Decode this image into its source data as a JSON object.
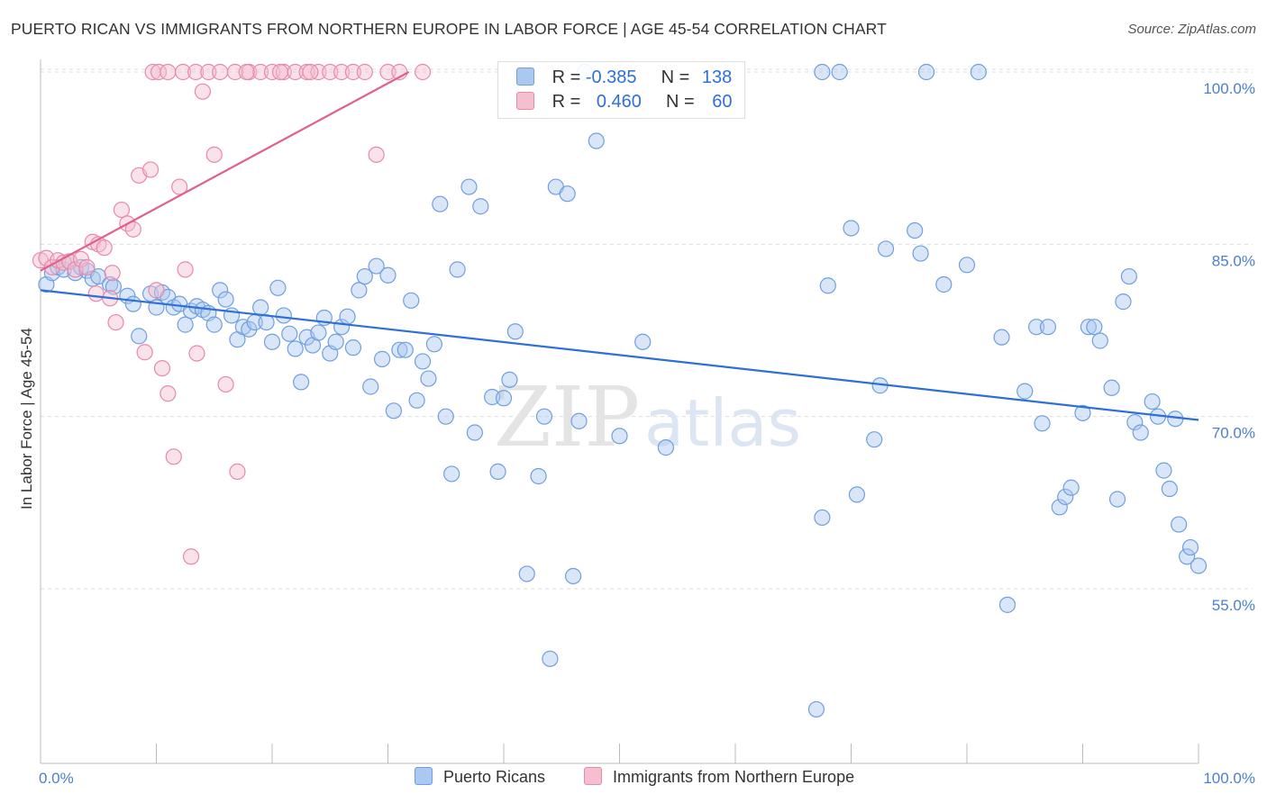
{
  "header": {
    "title": "PUERTO RICAN VS IMMIGRANTS FROM NORTHERN EUROPE IN LABOR FORCE | AGE 45-54 CORRELATION CHART",
    "source": "Source: ZipAtlas.com"
  },
  "watermark": {
    "zip": "ZIP",
    "atlas": "atlas"
  },
  "legend": {
    "rows": [
      {
        "r_label": "R =",
        "r_value": "-0.385",
        "n_label": "N =",
        "n_value": "138",
        "color": "#7aaae8"
      },
      {
        "r_label": "R =",
        "r_value": "0.460",
        "n_label": "N =",
        "n_value": "60",
        "color": "#f0a0b8"
      }
    ],
    "bottom": [
      {
        "label": "Puerto Ricans",
        "color": "#7aaae8"
      },
      {
        "label": "Immigrants from Northern Europe",
        "color": "#f0a0b8"
      }
    ]
  },
  "colors": {
    "blue_fill": "#aac8f0",
    "blue_stroke": "#6f9fe0",
    "blue_line": "#2e6fd8",
    "pink_fill": "#f5bfd0",
    "pink_stroke": "#e889a8",
    "pink_line": "#e0608a",
    "grid": "#dddddd",
    "tick_label": "#4a7fd1"
  },
  "chart_data": {
    "type": "scatter",
    "title": "PUERTO RICAN VS IMMIGRANTS FROM NORTHERN EUROPE IN LABOR FORCE | AGE 45-54 CORRELATION CHART",
    "xlabel": "",
    "ylabel": "In Labor Force | Age 45-54",
    "xlim": [
      0,
      100
    ],
    "ylim": [
      40,
      102
    ],
    "x_tick_labels": [
      "0.0%",
      "100.0%"
    ],
    "y_ticks": [
      100,
      85,
      70,
      55
    ],
    "y_tick_labels": [
      "100.0%",
      "85.0%",
      "70.0%",
      "55.0%"
    ],
    "grid": "horizontal dashed",
    "series": [
      {
        "name": "Puerto Ricans",
        "r": -0.385,
        "n": 138,
        "trend": {
          "x": [
            0,
            100
          ],
          "y": [
            81.0,
            69.7
          ]
        },
        "points": [
          [
            0.5,
            81.5
          ],
          [
            1,
            82.5
          ],
          [
            1.5,
            83
          ],
          [
            2,
            82.8
          ],
          [
            2.5,
            83.5
          ],
          [
            3,
            82.5
          ],
          [
            3.5,
            83
          ],
          [
            4,
            82.7
          ],
          [
            4.5,
            82
          ],
          [
            5,
            82.2
          ],
          [
            6,
            81.5
          ],
          [
            6.3,
            81.3
          ],
          [
            7.5,
            80.5
          ],
          [
            8,
            79.8
          ],
          [
            8.5,
            77
          ],
          [
            9.5,
            80.7
          ],
          [
            10,
            79.5
          ],
          [
            10.5,
            80.8
          ],
          [
            11,
            80.4
          ],
          [
            11.5,
            79.5
          ],
          [
            12,
            79.8
          ],
          [
            12.5,
            78
          ],
          [
            13,
            79.2
          ],
          [
            13.5,
            79.6
          ],
          [
            14,
            79.3
          ],
          [
            14.5,
            79
          ],
          [
            15,
            78
          ],
          [
            15.5,
            81
          ],
          [
            16,
            80.2
          ],
          [
            16.5,
            78.8
          ],
          [
            17,
            76.7
          ],
          [
            17.5,
            77.8
          ],
          [
            18,
            77.6
          ],
          [
            18.5,
            78.2
          ],
          [
            19,
            79.5
          ],
          [
            19.5,
            78.2
          ],
          [
            20,
            76.5
          ],
          [
            20.5,
            81.2
          ],
          [
            21,
            78.8
          ],
          [
            21.5,
            77.2
          ],
          [
            22,
            75.9
          ],
          [
            22.5,
            73
          ],
          [
            23,
            76.9
          ],
          [
            23.5,
            76.2
          ],
          [
            24,
            77.3
          ],
          [
            24.5,
            78.6
          ],
          [
            25,
            75.5
          ],
          [
            25.5,
            76.5
          ],
          [
            26,
            77.8
          ],
          [
            26.5,
            78.7
          ],
          [
            27,
            76
          ],
          [
            27.5,
            81
          ],
          [
            28,
            82.2
          ],
          [
            28.5,
            72.6
          ],
          [
            29,
            83.1
          ],
          [
            29.5,
            75
          ],
          [
            30,
            82.3
          ],
          [
            30.5,
            70.5
          ],
          [
            31,
            75.8
          ],
          [
            31.5,
            75.8
          ],
          [
            32,
            80.1
          ],
          [
            32.5,
            71.4
          ],
          [
            33,
            74.8
          ],
          [
            33.5,
            73.3
          ],
          [
            34,
            76.3
          ],
          [
            34.5,
            88.5
          ],
          [
            35,
            70
          ],
          [
            35.5,
            65
          ],
          [
            36,
            82.8
          ],
          [
            37,
            90
          ],
          [
            37.5,
            68.6
          ],
          [
            38,
            88.3
          ],
          [
            39,
            71.7
          ],
          [
            39.5,
            65.2
          ],
          [
            40,
            71.6
          ],
          [
            40.5,
            73.2
          ],
          [
            41,
            77.4
          ],
          [
            42,
            56.3
          ],
          [
            43,
            64.8
          ],
          [
            43.5,
            70
          ],
          [
            44,
            48.9
          ],
          [
            44.5,
            90
          ],
          [
            45.5,
            89.4
          ],
          [
            46,
            56.1
          ],
          [
            46.5,
            69.6
          ],
          [
            47,
            100
          ],
          [
            48,
            94
          ],
          [
            50,
            68.3
          ],
          [
            52,
            76.5
          ],
          [
            54,
            67.3
          ],
          [
            67,
            44.5
          ],
          [
            67.5,
            100
          ],
          [
            67.5,
            61.2
          ],
          [
            68,
            81.4
          ],
          [
            69,
            100
          ],
          [
            70,
            86.4
          ],
          [
            70.5,
            63.2
          ],
          [
            72,
            68
          ],
          [
            72.5,
            72.7
          ],
          [
            73,
            84.6
          ],
          [
            75.5,
            86.2
          ],
          [
            76,
            84.2
          ],
          [
            76.5,
            100
          ],
          [
            78,
            81.5
          ],
          [
            80,
            83.2
          ],
          [
            81,
            100
          ],
          [
            83,
            76.9
          ],
          [
            83.5,
            53.6
          ],
          [
            85,
            72.2
          ],
          [
            86,
            77.8
          ],
          [
            86.5,
            69.4
          ],
          [
            87,
            77.8
          ],
          [
            88,
            62.1
          ],
          [
            88.5,
            63
          ],
          [
            89,
            63.8
          ],
          [
            90,
            70.3
          ],
          [
            90.5,
            77.8
          ],
          [
            91,
            77.8
          ],
          [
            91.5,
            76.6
          ],
          [
            92.5,
            72.5
          ],
          [
            93,
            62.8
          ],
          [
            93.5,
            80
          ],
          [
            94,
            82.2
          ],
          [
            94.5,
            69.5
          ],
          [
            95,
            68.6
          ],
          [
            96,
            71.3
          ],
          [
            96.5,
            70
          ],
          [
            97,
            65.3
          ],
          [
            97.5,
            63.7
          ],
          [
            98,
            69.8
          ],
          [
            98.3,
            60.6
          ],
          [
            99,
            57.8
          ],
          [
            99.3,
            58.6
          ],
          [
            100,
            57
          ]
        ]
      },
      {
        "name": "Immigrants from Northern Europe",
        "r": 0.46,
        "n": 60,
        "trend": {
          "x": [
            0,
            31.8
          ],
          "y": [
            82.7,
            100
          ]
        },
        "points": [
          [
            0,
            83.6
          ],
          [
            0.5,
            83.8
          ],
          [
            1,
            83
          ],
          [
            1.5,
            83.6
          ],
          [
            2,
            83.4
          ],
          [
            2.5,
            83.5
          ],
          [
            3,
            82.8
          ],
          [
            3.5,
            83.7
          ],
          [
            4,
            83
          ],
          [
            4.5,
            85.2
          ],
          [
            5,
            85
          ],
          [
            5.5,
            84.7
          ],
          [
            6,
            80.3
          ],
          [
            6.5,
            78.2
          ],
          [
            7,
            88
          ],
          [
            7.5,
            86.8
          ],
          [
            8,
            86.3
          ],
          [
            8.5,
            91
          ],
          [
            9,
            75.6
          ],
          [
            9.5,
            91.5
          ],
          [
            10,
            81
          ],
          [
            10.5,
            74.2
          ],
          [
            11,
            72
          ],
          [
            11.5,
            66.5
          ],
          [
            12,
            90
          ],
          [
            12.5,
            82.8
          ],
          [
            13,
            57.8
          ],
          [
            13.5,
            75.5
          ],
          [
            14,
            98.3
          ],
          [
            15,
            92.8
          ],
          [
            16,
            72.8
          ],
          [
            17,
            65.2
          ],
          [
            18,
            100
          ],
          [
            19,
            100
          ],
          [
            20,
            100
          ],
          [
            21,
            100
          ],
          [
            22,
            100
          ],
          [
            23,
            100
          ],
          [
            24,
            100
          ],
          [
            25,
            100
          ],
          [
            26,
            100
          ],
          [
            27,
            100
          ],
          [
            28,
            100
          ],
          [
            29,
            92.8
          ],
          [
            30,
            100
          ],
          [
            31,
            100
          ],
          [
            33,
            100
          ],
          [
            9.7,
            100
          ],
          [
            10.2,
            100
          ],
          [
            11,
            100
          ],
          [
            12.3,
            100
          ],
          [
            13.4,
            100
          ],
          [
            14.5,
            100
          ],
          [
            15.5,
            100
          ],
          [
            16.8,
            100
          ],
          [
            17.8,
            100
          ],
          [
            20.7,
            100
          ],
          [
            23.3,
            100
          ],
          [
            6.2,
            82.5
          ],
          [
            4.8,
            80.7
          ]
        ]
      }
    ]
  }
}
